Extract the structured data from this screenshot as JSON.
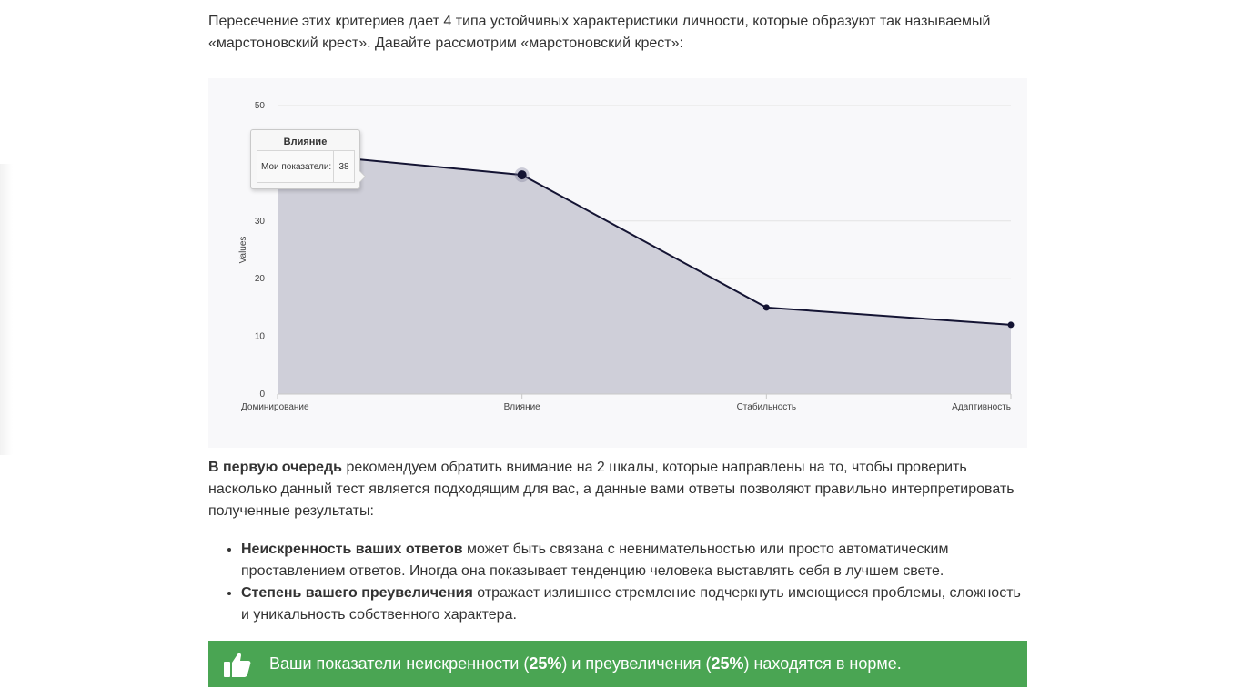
{
  "intro": {
    "text": "Пересечение этих критериев дает 4 типа устойчивых характеристики личности, которые образуют так называемый «марстоновский крест». Давайте рассмотрим «марстоновский крест»:"
  },
  "chart_data": {
    "type": "area",
    "categories": [
      "Доминирование",
      "Влияние",
      "Стабильность",
      "Адаптивность"
    ],
    "series": [
      {
        "name": "Мои показатели",
        "values": [
          42,
          38,
          15,
          12
        ]
      }
    ],
    "ylabel": "Values",
    "ylim": [
      0,
      50
    ],
    "yticks": [
      0,
      10,
      20,
      30,
      50
    ],
    "grid": true,
    "fill_color": "#cfcfd9",
    "line_color": "#141433"
  },
  "tooltip": {
    "title": "Влияние",
    "label": "Мои показатели:",
    "value": "38"
  },
  "section": {
    "lead_bold": "В первую очередь",
    "lead_rest": " рекомендуем обратить внимание на 2 шкалы, которые направлены на то, чтобы проверить насколько данный тест является подходящим для вас, а данные вами ответы позволяют правильно интерпретировать полученные результаты:",
    "items": [
      {
        "bold": "Неискренность ваших ответов",
        "rest": " может быть связана с невнимательностью или просто автоматическим проставлением ответов. Иногда она показывает тенденцию человека выставлять себя в лучшем свете."
      },
      {
        "bold": "Степень вашего преувеличения",
        "rest": " отражает излишнее стремление подчеркнуть имеющиеся проблемы, сложность и уникальность собственного характера."
      }
    ]
  },
  "banner": {
    "icon": "thumbs-up-icon",
    "color": "#4aa553",
    "part1": "Ваши показатели неискренности (",
    "value1": "25%",
    "part2": ") и преувеличения (",
    "value2": "25%",
    "part3": ") находятся в норме."
  }
}
